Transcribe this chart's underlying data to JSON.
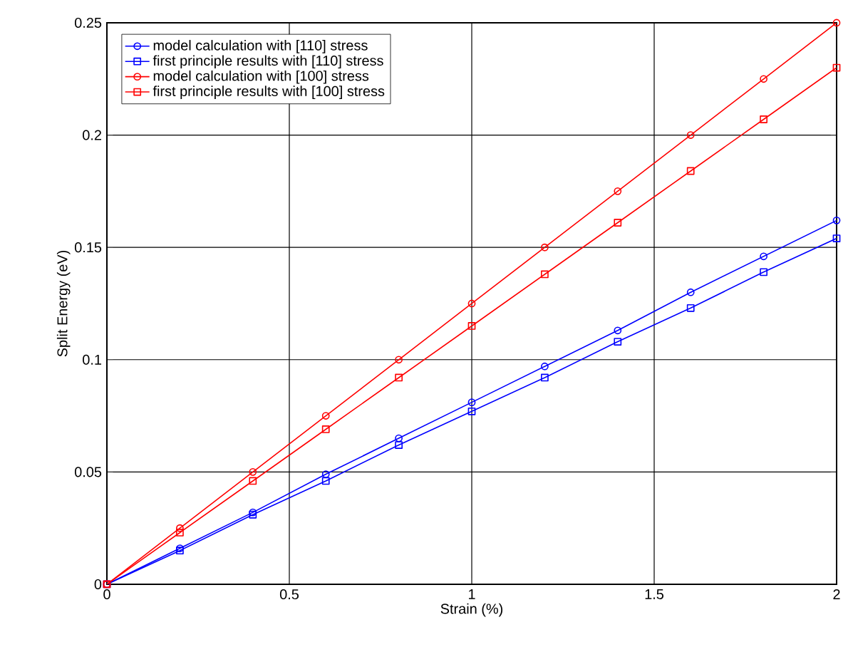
{
  "chart_data": {
    "type": "line",
    "xlabel": "Strain (%)",
    "ylabel": "Split Energy (eV)",
    "x": [
      0,
      0.2,
      0.4,
      0.6,
      0.8,
      1.0,
      1.2,
      1.4,
      1.6,
      1.8,
      2.0
    ],
    "series": [
      {
        "name": "model calculation with [110] stress",
        "color": "#0000ff",
        "marker": "circle",
        "values": [
          0,
          0.016,
          0.032,
          0.049,
          0.065,
          0.081,
          0.097,
          0.113,
          0.13,
          0.146,
          0.162
        ]
      },
      {
        "name": "first principle results with [110] stress",
        "color": "#0000ff",
        "marker": "square",
        "values": [
          0,
          0.015,
          0.031,
          0.046,
          0.062,
          0.077,
          0.092,
          0.108,
          0.123,
          0.139,
          0.154
        ]
      },
      {
        "name": "model calculation with [100] stress",
        "color": "#ff0000",
        "marker": "circle",
        "values": [
          0,
          0.025,
          0.05,
          0.075,
          0.1,
          0.125,
          0.15,
          0.175,
          0.2,
          0.225,
          0.25
        ]
      },
      {
        "name": "first principle results with [100] stress",
        "color": "#ff0000",
        "marker": "square",
        "values": [
          0,
          0.023,
          0.046,
          0.069,
          0.092,
          0.115,
          0.138,
          0.161,
          0.184,
          0.207,
          0.23
        ]
      }
    ],
    "xlim": [
      0,
      2
    ],
    "ylim": [
      0,
      0.25
    ],
    "xticks": [
      0,
      0.5,
      1,
      1.5,
      2
    ],
    "yticks": [
      0,
      0.05,
      0.1,
      0.15,
      0.2,
      0.25
    ],
    "grid": true,
    "legend": "top left",
    "line_style": "solid"
  }
}
